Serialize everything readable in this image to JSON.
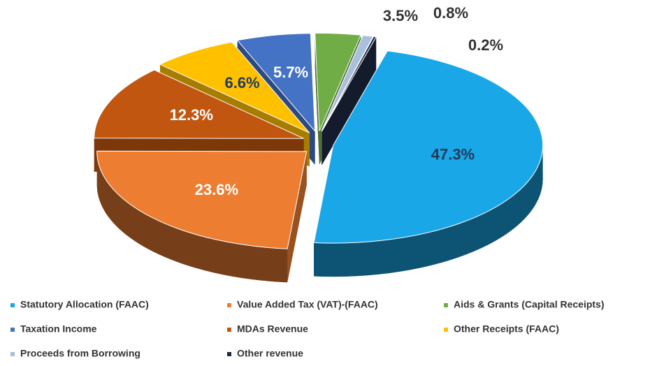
{
  "chart_data": {
    "type": "pie",
    "categories": [
      "Statutory Allocation (FAAC)",
      "Value Added Tax (VAT)-(FAAC)",
      "Aids & Grants (Capital Receipts)",
      "Taxation Income",
      "MDAs Revenue",
      "Other Receipts (FAAC)",
      "Proceeds from  Borrowing",
      "Other revenue"
    ],
    "values": [
      47.3,
      23.6,
      3.5,
      5.7,
      12.3,
      6.6,
      0.8,
      0.2
    ],
    "value_labels": [
      "47.3%",
      "23.6%",
      "3.5%",
      "5.7%",
      "12.3%",
      "6.6%",
      "0.8%",
      "0.2%"
    ],
    "colors": [
      "#1aa7e8",
      "#ed7d31",
      "#70ad47",
      "#4472c4",
      "#c0560f",
      "#ffc000",
      "#a9bfdc",
      "#1f2a44"
    ],
    "legend": "bottom"
  }
}
